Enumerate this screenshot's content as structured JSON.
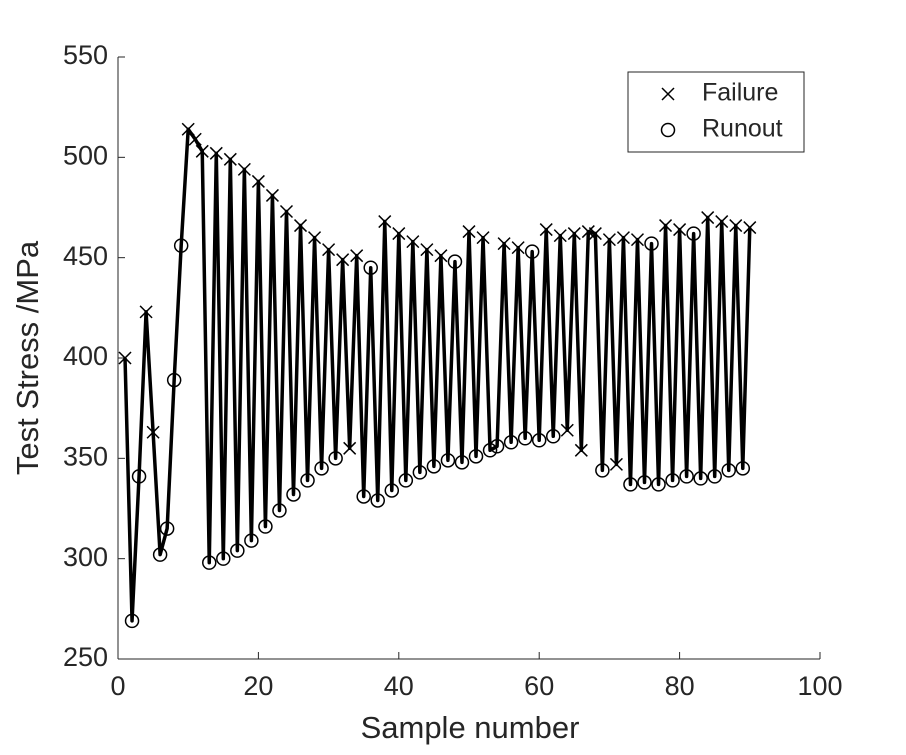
{
  "chart_data": {
    "type": "line",
    "xlabel": "Sample number",
    "ylabel": "Test Stress /MPa",
    "x": [
      1,
      2,
      3,
      4,
      5,
      6,
      7,
      8,
      9,
      10,
      11,
      12,
      13,
      14,
      15,
      16,
      17,
      18,
      19,
      20,
      21,
      22,
      23,
      24,
      25,
      26,
      27,
      28,
      29,
      30,
      31,
      32,
      33,
      34,
      35,
      36,
      37,
      38,
      39,
      40,
      41,
      42,
      43,
      44,
      45,
      46,
      47,
      48,
      49,
      50,
      51,
      52,
      53,
      54,
      55,
      56,
      57,
      58,
      59,
      60,
      61,
      62,
      63,
      64,
      65,
      66,
      67,
      68,
      69,
      70,
      71,
      72,
      73,
      74,
      75,
      76,
      77,
      78,
      79,
      80,
      81,
      82,
      83,
      84,
      85,
      86,
      87,
      88,
      89,
      90
    ],
    "series": [
      {
        "name": "Failure",
        "marker": "x",
        "color": "#000000",
        "values": [
          400,
          null,
          null,
          423,
          363,
          null,
          null,
          null,
          null,
          514,
          509,
          503,
          null,
          502,
          null,
          499,
          null,
          494,
          null,
          488,
          null,
          481,
          null,
          473,
          null,
          466,
          null,
          460,
          null,
          454,
          null,
          449,
          355,
          451,
          null,
          null,
          null,
          468,
          null,
          462,
          null,
          458,
          null,
          454,
          null,
          451,
          null,
          null,
          null,
          463,
          null,
          460,
          null,
          null,
          457,
          null,
          455,
          null,
          null,
          null,
          464,
          null,
          461,
          364,
          462,
          354,
          463,
          462,
          null,
          459,
          347,
          460,
          null,
          459,
          null,
          null,
          null,
          466,
          null,
          464,
          null,
          null,
          null,
          470,
          null,
          468,
          null,
          466,
          null,
          465
        ]
      },
      {
        "name": "Runout",
        "marker": "o",
        "color": "#000000",
        "values": [
          null,
          269,
          341,
          null,
          null,
          302,
          315,
          389,
          456,
          null,
          null,
          null,
          298,
          null,
          300,
          null,
          304,
          null,
          309,
          null,
          316,
          null,
          324,
          null,
          332,
          null,
          339,
          null,
          345,
          null,
          350,
          null,
          null,
          null,
          331,
          445,
          329,
          null,
          334,
          null,
          339,
          null,
          343,
          null,
          346,
          null,
          349,
          448,
          348,
          null,
          351,
          null,
          354,
          356,
          null,
          358,
          null,
          360,
          453,
          359,
          null,
          361,
          null,
          null,
          null,
          null,
          null,
          null,
          344,
          null,
          null,
          null,
          337,
          null,
          338,
          457,
          337,
          null,
          339,
          null,
          341,
          462,
          340,
          null,
          341,
          null,
          344,
          null,
          345,
          null
        ]
      }
    ],
    "line_color": "#000000",
    "xlim": [
      0,
      100
    ],
    "xticks": [
      0,
      20,
      40,
      60,
      80,
      100
    ],
    "ylim": [
      250,
      550
    ],
    "yticks": [
      250,
      300,
      350,
      400,
      450,
      500,
      550
    ],
    "grid": false,
    "legend": "northeast"
  }
}
